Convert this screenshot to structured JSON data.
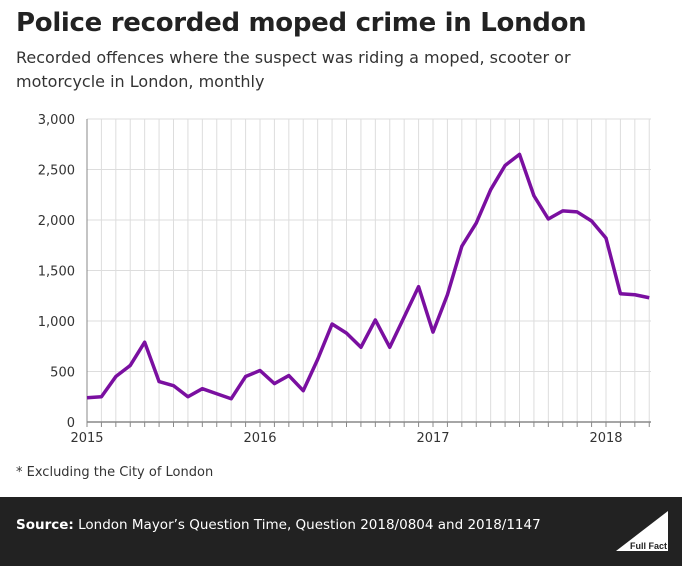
{
  "title": "Police recorded moped crime in London",
  "subtitle": "Recorded offences where the suspect was riding a moped, scooter or motorcycle in London, monthly",
  "note": "* Excluding the City of London",
  "source": {
    "label": "Source:",
    "text": "London Mayor’s Question Time, Question 2018/0804 and 2018/1147"
  },
  "logo_text": "Full Fact",
  "chart_data": {
    "type": "line",
    "title": "",
    "xlabel": "",
    "ylabel": "",
    "color": "#7a0fa0",
    "grid": true,
    "ylim": [
      0,
      3000
    ],
    "yticks": [
      0,
      500,
      1000,
      1500,
      2000,
      2500,
      3000
    ],
    "ytick_labels": [
      "0",
      "500",
      "1,000",
      "1,500",
      "2,000",
      "2,500",
      "3,000"
    ],
    "xtick_labels": [
      "2015",
      "2016",
      "2017",
      "2018"
    ],
    "x_start": "2015-01",
    "x_end": "2018-04",
    "values": [
      240,
      250,
      450,
      560,
      790,
      400,
      360,
      250,
      330,
      280,
      230,
      450,
      510,
      380,
      460,
      310,
      620,
      970,
      880,
      740,
      1010,
      740,
      1040,
      1340,
      890,
      1260,
      1740,
      1970,
      2300,
      2540,
      2650,
      2240,
      2010,
      2090,
      2080,
      1990,
      1820,
      1270,
      1260,
      1230
    ]
  }
}
